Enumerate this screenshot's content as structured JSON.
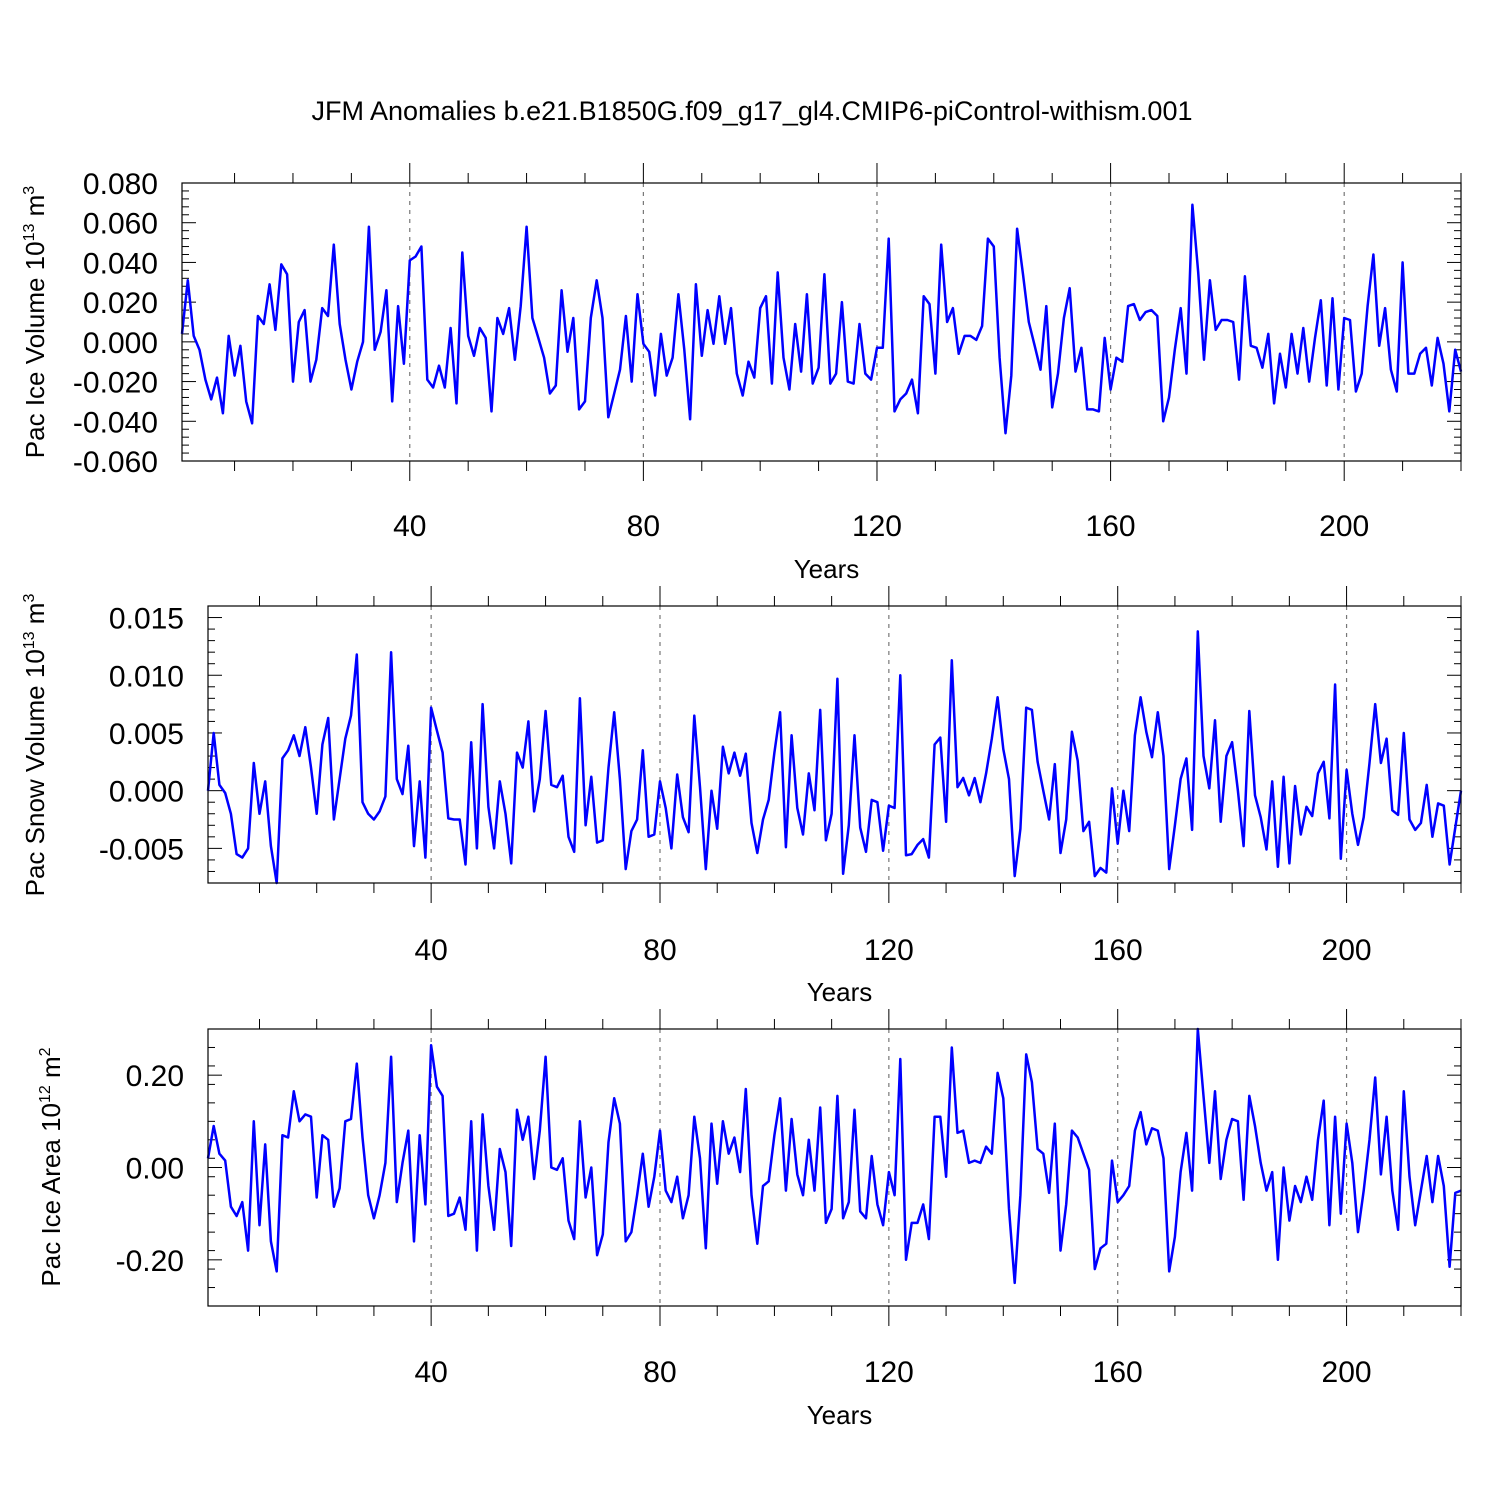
{
  "figure": {
    "title": "JFM Anomalies b.e21.B1850G.f09_g17_gl4.CMIP6-piControl-withism.001",
    "line_color": "#0000ff"
  },
  "chart_data": [
    {
      "type": "line",
      "title": "",
      "xlabel": "Years",
      "ylabel": "Pac Ice Volume 10",
      "ylabel_exp": "13",
      "ylabel_unit": " m",
      "ylabel_unit_exp": "3",
      "xlim": [
        1,
        220
      ],
      "ylim": [
        -0.06,
        0.08
      ],
      "yticks": [
        -0.06,
        -0.04,
        -0.02,
        0.0,
        0.02,
        0.04,
        0.06,
        0.08
      ],
      "ytick_labels": [
        "-0.060",
        "-0.040",
        "-0.020",
        "0.000",
        "0.020",
        "0.040",
        "0.060",
        "0.080"
      ],
      "xticks": [
        40,
        80,
        120,
        160,
        200
      ],
      "xtick_labels": [
        "40",
        "80",
        "120",
        "160",
        "200"
      ],
      "grid": "dashed vertical at major x ticks",
      "x_start": 1,
      "values": [
        0.004,
        0.031,
        0.003,
        -0.004,
        -0.019,
        -0.029,
        -0.018,
        -0.036,
        0.003,
        -0.017,
        -0.002,
        -0.03,
        -0.041,
        0.013,
        0.009,
        0.029,
        0.006,
        0.039,
        0.034,
        -0.02,
        0.01,
        0.016,
        -0.02,
        -0.009,
        0.017,
        0.013,
        0.049,
        0.009,
        -0.009,
        -0.024,
        -0.01,
        0.0,
        0.058,
        -0.004,
        0.005,
        0.026,
        -0.03,
        0.018,
        -0.011,
        0.041,
        0.043,
        0.048,
        -0.019,
        -0.023,
        -0.012,
        -0.023,
        0.007,
        -0.031,
        0.045,
        0.003,
        -0.007,
        0.007,
        0.002,
        -0.035,
        0.012,
        0.004,
        0.017,
        -0.009,
        0.018,
        0.058,
        0.012,
        0.002,
        -0.008,
        -0.026,
        -0.022,
        0.026,
        -0.005,
        0.012,
        -0.034,
        -0.03,
        0.012,
        0.031,
        0.012,
        -0.038,
        -0.026,
        -0.014,
        0.013,
        -0.02,
        0.024,
        -0.001,
        -0.005,
        -0.027,
        0.004,
        -0.017,
        -0.008,
        0.024,
        -0.004,
        -0.039,
        0.029,
        -0.007,
        0.016,
        -0.001,
        0.023,
        -0.001,
        0.017,
        -0.016,
        -0.027,
        -0.01,
        -0.018,
        0.017,
        0.023,
        -0.021,
        0.035,
        -0.008,
        -0.024,
        0.009,
        -0.015,
        0.024,
        -0.021,
        -0.013,
        0.034,
        -0.021,
        -0.016,
        0.02,
        -0.02,
        -0.021,
        0.009,
        -0.016,
        -0.019,
        -0.003,
        -0.003,
        0.052,
        -0.035,
        -0.029,
        -0.026,
        -0.019,
        -0.036,
        0.023,
        0.019,
        -0.016,
        0.049,
        0.01,
        0.017,
        -0.006,
        0.003,
        0.003,
        0.001,
        0.008,
        0.052,
        0.048,
        -0.008,
        -0.046,
        -0.017,
        0.057,
        0.034,
        0.01,
        -0.002,
        -0.014,
        0.018,
        -0.033,
        -0.016,
        0.012,
        0.027,
        -0.015,
        -0.003,
        -0.034,
        -0.034,
        -0.035,
        0.002,
        -0.024,
        -0.008,
        -0.01,
        0.018,
        0.019,
        0.011,
        0.015,
        0.016,
        0.013,
        -0.04,
        -0.028,
        -0.004,
        0.017,
        -0.016,
        0.069,
        0.035,
        -0.009,
        0.031,
        0.006,
        0.011,
        0.011,
        0.01,
        -0.019,
        0.033,
        -0.002,
        -0.003,
        -0.013,
        0.004,
        -0.031,
        -0.006,
        -0.023,
        0.004,
        -0.016,
        0.007,
        -0.02,
        0.002,
        0.021,
        -0.022,
        0.022,
        -0.024,
        0.012,
        0.011,
        -0.025,
        -0.016,
        0.018,
        0.044,
        -0.002,
        0.017,
        -0.014,
        -0.025,
        0.04,
        -0.016,
        -0.016,
        -0.006,
        -0.003,
        -0.022,
        0.002,
        -0.011,
        -0.035,
        -0.004,
        -0.015
      ]
    },
    {
      "type": "line",
      "title": "",
      "xlabel": "Years",
      "ylabel": "Pac Snow Volume 10",
      "ylabel_exp": "13",
      "ylabel_unit": " m",
      "ylabel_unit_exp": "3",
      "xlim": [
        1,
        220
      ],
      "ylim": [
        -0.008,
        0.016
      ],
      "yticks": [
        -0.005,
        0.0,
        0.005,
        0.01,
        0.015
      ],
      "ytick_labels": [
        "-0.005",
        "0.000",
        "0.005",
        "0.010",
        "0.015"
      ],
      "xticks": [
        40,
        80,
        120,
        160,
        200
      ],
      "xtick_labels": [
        "40",
        "80",
        "120",
        "160",
        "200"
      ],
      "grid": "dashed vertical at major x ticks",
      "x_start": 1,
      "values": [
        0.0,
        0.005,
        0.0005,
        -0.0002,
        -0.002,
        -0.0055,
        -0.0058,
        -0.005,
        0.0024,
        -0.002,
        0.0008,
        -0.0048,
        -0.008,
        0.0028,
        0.0035,
        0.0048,
        0.003,
        0.0055,
        0.002,
        -0.002,
        0.004,
        0.0063,
        -0.0025,
        0.001,
        0.0045,
        0.0065,
        0.0118,
        -0.001,
        -0.002,
        -0.0025,
        -0.0018,
        -0.0005,
        0.012,
        0.001,
        -0.0003,
        0.0039,
        -0.0048,
        0.0008,
        -0.0058,
        0.0072,
        0.0052,
        0.0033,
        -0.0024,
        -0.0025,
        -0.0025,
        -0.0064,
        0.0042,
        -0.005,
        0.0075,
        -0.0014,
        -0.005,
        0.0008,
        -0.002,
        -0.0063,
        0.0033,
        0.002,
        0.006,
        -0.0018,
        0.001,
        0.0069,
        0.0005,
        0.0003,
        0.0013,
        -0.004,
        -0.0053,
        0.008,
        -0.003,
        0.0012,
        -0.0045,
        -0.0043,
        0.002,
        0.0068,
        0.001,
        -0.0068,
        -0.0035,
        -0.0025,
        0.0035,
        -0.004,
        -0.0038,
        0.0008,
        -0.0015,
        -0.005,
        0.0014,
        -0.0023,
        -0.0036,
        0.0065,
        0.0003,
        -0.0068,
        0.0,
        -0.0033,
        0.0038,
        0.0015,
        0.0033,
        0.0013,
        0.0032,
        -0.0028,
        -0.0054,
        -0.0025,
        -0.0008,
        0.0033,
        0.0068,
        -0.0049,
        0.0048,
        -0.0015,
        -0.0038,
        0.0015,
        -0.0017,
        0.007,
        -0.0043,
        -0.002,
        0.0097,
        -0.0072,
        -0.003,
        0.0048,
        -0.0032,
        -0.0053,
        -0.0008,
        -0.001,
        -0.0052,
        -0.0013,
        -0.0015,
        0.01,
        -0.0056,
        -0.0055,
        -0.0047,
        -0.0042,
        -0.0058,
        0.004,
        0.0046,
        -0.0027,
        0.0113,
        0.0003,
        0.0011,
        -0.0004,
        0.0011,
        -0.001,
        0.0015,
        0.0045,
        0.0081,
        0.0036,
        0.001,
        -0.0074,
        -0.0033,
        0.0072,
        0.007,
        0.0025,
        0.0,
        -0.0025,
        0.0023,
        -0.0054,
        -0.0025,
        0.0051,
        0.0026,
        -0.0035,
        -0.0027,
        -0.0074,
        -0.0067,
        -0.0071,
        0.0002,
        -0.0046,
        0.0,
        -0.0035,
        0.0048,
        0.0081,
        0.0051,
        0.0029,
        0.0068,
        0.003,
        -0.0068,
        -0.003,
        0.001,
        0.0028,
        -0.0034,
        0.0138,
        0.003,
        0.0002,
        0.0061,
        -0.0027,
        0.003,
        0.0042,
        0.0,
        -0.0048,
        0.0069,
        -0.0004,
        -0.0023,
        -0.0051,
        0.0008,
        -0.0066,
        0.0012,
        -0.0063,
        0.0004,
        -0.0038,
        -0.0014,
        -0.0022,
        0.0015,
        0.0025,
        -0.0024,
        0.0092,
        -0.0059,
        0.0018,
        -0.002,
        -0.0047,
        -0.0023,
        0.0024,
        0.0075,
        0.0024,
        0.0045,
        -0.0017,
        -0.0021,
        0.005,
        -0.0025,
        -0.0034,
        -0.0028,
        0.0005,
        -0.004,
        -0.0011,
        -0.0013,
        -0.0064,
        -0.0032,
        0.0
      ]
    },
    {
      "type": "line",
      "title": "",
      "xlabel": "Years",
      "ylabel": "Pac Ice Area 10",
      "ylabel_exp": "12",
      "ylabel_unit": " m",
      "ylabel_unit_exp": "2",
      "xlim": [
        1,
        220
      ],
      "ylim": [
        -0.3,
        0.3
      ],
      "yticks": [
        -0.2,
        0.0,
        0.2
      ],
      "ytick_labels": [
        "-0.20",
        "0.00",
        "0.20"
      ],
      "xticks": [
        40,
        80,
        120,
        160,
        200
      ],
      "xtick_labels": [
        "40",
        "80",
        "120",
        "160",
        "200"
      ],
      "grid": "dashed vertical at major x ticks",
      "x_start": 1,
      "values": [
        0.02,
        0.09,
        0.03,
        0.015,
        -0.085,
        -0.105,
        -0.075,
        -0.18,
        0.1,
        -0.125,
        0.05,
        -0.16,
        -0.225,
        0.07,
        0.065,
        0.165,
        0.1,
        0.115,
        0.11,
        -0.065,
        0.07,
        0.06,
        -0.085,
        -0.045,
        0.1,
        0.105,
        0.225,
        0.065,
        -0.06,
        -0.11,
        -0.06,
        0.01,
        0.24,
        -0.075,
        0.01,
        0.08,
        -0.16,
        0.07,
        -0.08,
        0.265,
        0.175,
        0.155,
        -0.105,
        -0.1,
        -0.065,
        -0.135,
        0.1,
        -0.18,
        0.115,
        -0.04,
        -0.135,
        0.04,
        -0.01,
        -0.17,
        0.125,
        0.06,
        0.11,
        -0.025,
        0.08,
        0.24,
        0.0,
        -0.005,
        0.02,
        -0.115,
        -0.155,
        0.1,
        -0.065,
        0.0,
        -0.19,
        -0.145,
        0.055,
        0.15,
        0.095,
        -0.16,
        -0.14,
        -0.06,
        0.03,
        -0.085,
        -0.02,
        0.08,
        -0.05,
        -0.075,
        -0.02,
        -0.11,
        -0.06,
        0.11,
        0.02,
        -0.175,
        0.095,
        -0.035,
        0.1,
        0.03,
        0.065,
        -0.01,
        0.17,
        -0.06,
        -0.165,
        -0.04,
        -0.03,
        0.07,
        0.15,
        -0.05,
        0.105,
        -0.015,
        -0.06,
        0.06,
        -0.05,
        0.13,
        -0.12,
        -0.09,
        0.155,
        -0.11,
        -0.075,
        0.125,
        -0.095,
        -0.11,
        0.025,
        -0.08,
        -0.125,
        -0.01,
        -0.06,
        0.235,
        -0.2,
        -0.12,
        -0.12,
        -0.08,
        -0.155,
        0.11,
        0.11,
        -0.02,
        0.26,
        0.075,
        0.08,
        0.01,
        0.015,
        0.01,
        0.045,
        0.03,
        0.205,
        0.15,
        -0.09,
        -0.25,
        -0.06,
        0.245,
        0.185,
        0.04,
        0.03,
        -0.055,
        0.095,
        -0.18,
        -0.08,
        0.08,
        0.065,
        0.03,
        -0.005,
        -0.22,
        -0.175,
        -0.165,
        0.015,
        -0.075,
        -0.06,
        -0.04,
        0.08,
        0.12,
        0.05,
        0.085,
        0.08,
        0.02,
        -0.225,
        -0.15,
        -0.01,
        0.075,
        -0.05,
        0.3,
        0.155,
        0.01,
        0.165,
        -0.025,
        0.06,
        0.105,
        0.1,
        -0.07,
        0.155,
        0.09,
        0.01,
        -0.05,
        -0.01,
        -0.2,
        0.0,
        -0.115,
        -0.04,
        -0.075,
        -0.02,
        -0.07,
        0.06,
        0.145,
        -0.125,
        0.11,
        -0.1,
        0.095,
        0.01,
        -0.14,
        -0.05,
        0.06,
        0.195,
        -0.015,
        0.11,
        -0.05,
        -0.135,
        0.165,
        -0.02,
        -0.125,
        -0.05,
        0.025,
        -0.075,
        0.025,
        -0.04,
        -0.215,
        -0.055,
        -0.05
      ]
    }
  ]
}
